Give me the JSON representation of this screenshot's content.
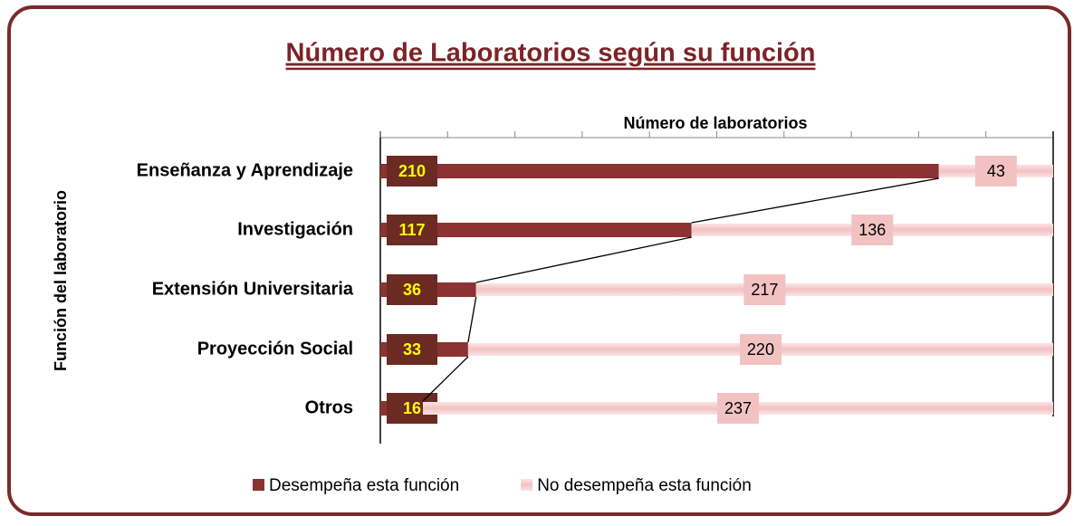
{
  "chart_data": {
    "type": "bar",
    "orientation": "horizontal",
    "stacked": "percent",
    "title": "Número de Laboratorios según su función",
    "x_label": "Número de laboratorios",
    "y_label": "Función del laboratorio",
    "categories": [
      "Enseñanza y Aprendizaje",
      "Investigación",
      "Extensión Universitaria",
      "Proyección Social",
      "Otros"
    ],
    "series": [
      {
        "name": "Desempeña esta función",
        "color": "#8b3232",
        "label_color": "#ffff00",
        "label_bg": "#6b2a22",
        "values": [
          210,
          117,
          36,
          33,
          16
        ]
      },
      {
        "name": "No desempeña esta función",
        "color": "#f2c2c2",
        "label_color": "#000000",
        "label_bg": "#f2c2c2",
        "values": [
          43,
          136,
          217,
          220,
          237
        ]
      }
    ],
    "xlim": [
      0,
      100
    ],
    "xticks": [
      0,
      10,
      20,
      30,
      40,
      50,
      60,
      70,
      80,
      90,
      100
    ],
    "series_lines": true,
    "legend": "bottom"
  }
}
